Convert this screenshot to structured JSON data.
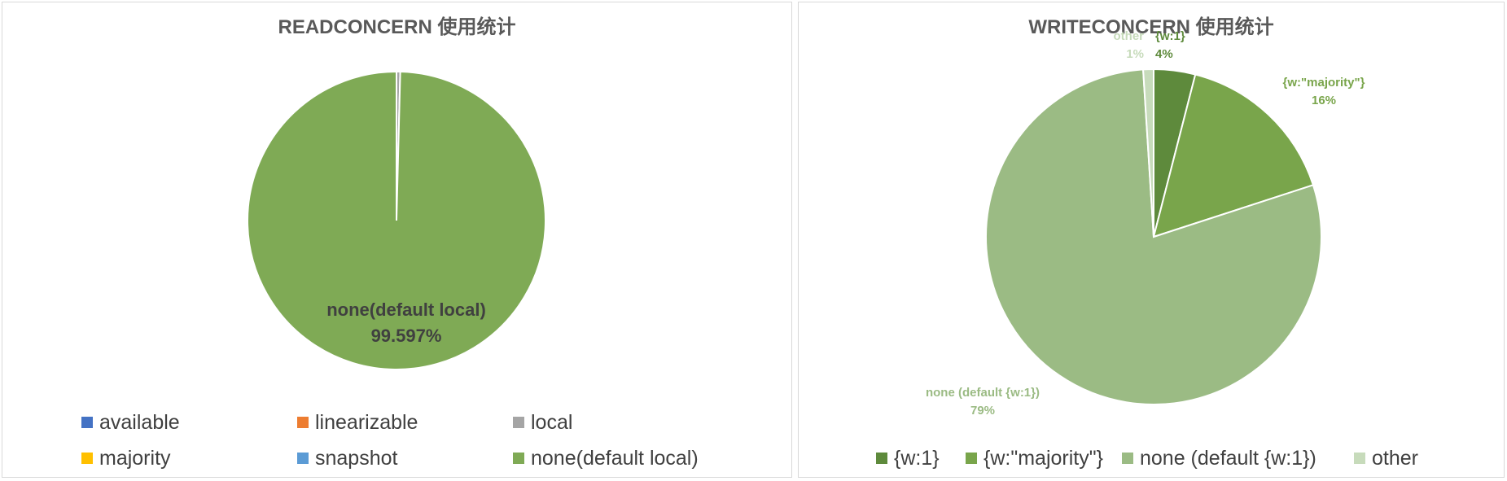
{
  "chart_data": [
    {
      "type": "pie",
      "title": "READCONCERN 使用统计",
      "categories": [
        "available",
        "linearizable",
        "local",
        "majority",
        "snapshot",
        "none(default local)"
      ],
      "values": [
        0.0,
        0.0,
        0.403,
        0.0,
        0.0,
        99.597
      ],
      "colors": [
        "#4472c4",
        "#ed7d31",
        "#a5a5a5",
        "#ffc000",
        "#5b9bd5",
        "#7faa55"
      ],
      "data_labels": [
        {
          "category": "none(default local)",
          "text": "none(default local)",
          "value_text": "99.597%",
          "color": "#404040"
        }
      ],
      "legend_position": "bottom",
      "legend_rows": [
        [
          "available",
          "linearizable",
          "local"
        ],
        [
          "majority",
          "snapshot",
          "none(default local)"
        ]
      ]
    },
    {
      "type": "pie",
      "title": "WRITECONCERN 使用统计",
      "categories": [
        "{w:1}",
        "{w:\"majority\"}",
        "none (default {w:1})",
        "other"
      ],
      "values": [
        4,
        16,
        79,
        1
      ],
      "colors": [
        "#5e8a3c",
        "#79a54b",
        "#9bbb84",
        "#c7dbbb"
      ],
      "data_labels": [
        {
          "category": "{w:1}",
          "text": "{w:1}",
          "value_text": "4%",
          "color": "#5e8a3c"
        },
        {
          "category": "{w:\"majority\"}",
          "text": "{w:\"majority\"}",
          "value_text": "16%",
          "color": "#79a54b"
        },
        {
          "category": "none (default {w:1})",
          "text": "none (default {w:1})",
          "value_text": "79%",
          "color": "#9bbb84"
        },
        {
          "category": "other",
          "text": "other",
          "value_text": "1%",
          "color": "#c7dbbb"
        }
      ],
      "legend_position": "bottom",
      "legend_rows": [
        [
          "{w:1}",
          "{w:\"majority\"}",
          "none (default {w:1})",
          "other"
        ]
      ]
    }
  ]
}
